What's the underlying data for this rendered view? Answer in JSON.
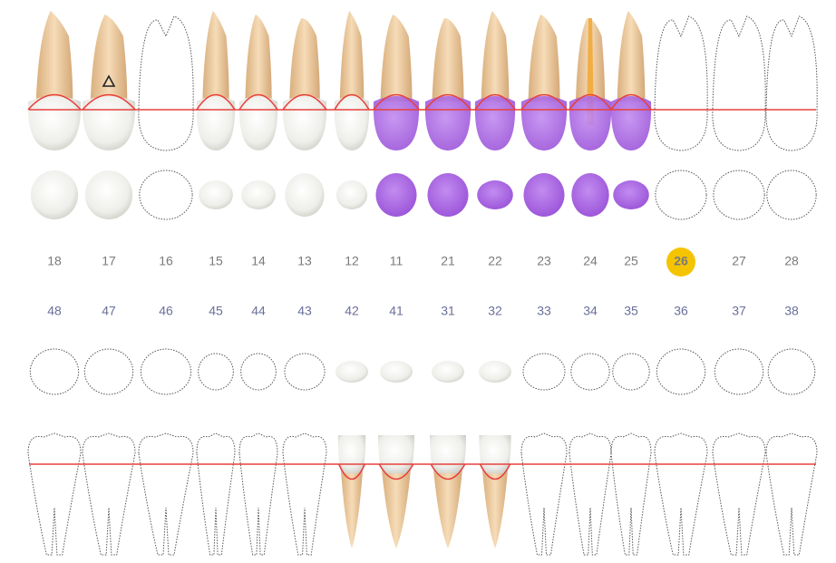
{
  "upper_numbers": [
    "18",
    "17",
    "16",
    "15",
    "14",
    "13",
    "12",
    "11",
    "21",
    "22",
    "23",
    "24",
    "25",
    "26",
    "27",
    "28"
  ],
  "lower_numbers": [
    "48",
    "47",
    "46",
    "45",
    "44",
    "43",
    "42",
    "41",
    "31",
    "32",
    "33",
    "34",
    "35",
    "36",
    "37",
    "38"
  ]
}
